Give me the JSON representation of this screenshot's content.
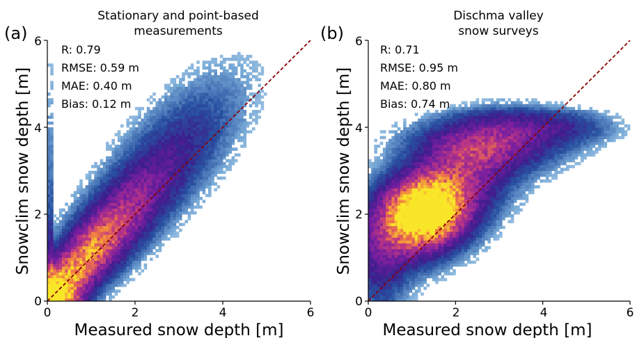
{
  "chart_data": [
    {
      "type": "heatmap",
      "panel_label": "(a)",
      "title_lines": [
        "Stationary and point-based",
        "measurements"
      ],
      "xlabel": "Measured snow depth [m]",
      "ylabel": "Snowclim snow depth [m]",
      "xlim": [
        0,
        6
      ],
      "ylim": [
        0,
        6
      ],
      "xticks": [
        "0",
        "2",
        "4",
        "6"
      ],
      "yticks": [
        "0",
        "2",
        "4",
        "6"
      ],
      "stats": [
        "R: 0.79",
        "RMSE: 0.59 m",
        "MAE: 0.40 m",
        "Bias: 0.12 m"
      ],
      "reference_line": {
        "from": [
          0,
          0
        ],
        "to": [
          6,
          6
        ],
        "style": "dashed",
        "color": "#8b0000"
      },
      "colormap": "plasma",
      "density_peak": [
        0.2,
        0.1
      ],
      "grid": false
    },
    {
      "type": "heatmap",
      "panel_label": "(b)",
      "title_lines": [
        "Dischma valley",
        "snow surveys"
      ],
      "xlabel": "Measured snow depth [m]",
      "ylabel": "Snowclim snow depth [m]",
      "xlim": [
        0,
        6
      ],
      "ylim": [
        0,
        6
      ],
      "xticks": [
        "0",
        "2",
        "4",
        "6"
      ],
      "yticks": [
        "0",
        "2",
        "4",
        "6"
      ],
      "stats": [
        "R: 0.71",
        "RMSE: 0.95 m",
        "MAE: 0.80 m",
        "Bias: 0.74 m"
      ],
      "reference_line": {
        "from": [
          0,
          0
        ],
        "to": [
          6,
          6
        ],
        "style": "dashed",
        "color": "#8b0000"
      },
      "colormap": "plasma",
      "density_peak": [
        1.3,
        2.0
      ],
      "grid": false
    }
  ]
}
